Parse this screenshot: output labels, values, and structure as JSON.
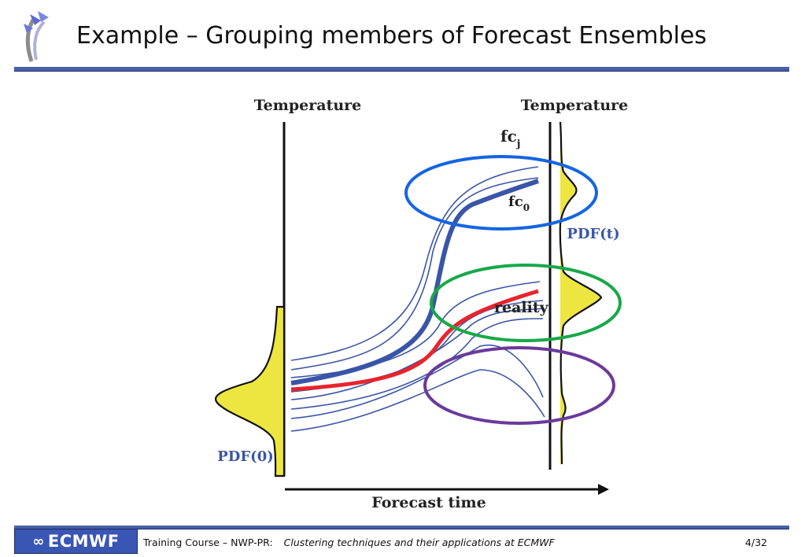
{
  "slide": {
    "title": "Example – Grouping members of Forecast Ensembles"
  },
  "diagram": {
    "left_axis_label": "Temperature",
    "right_axis_label": "Temperature",
    "x_axis_label": "Forecast time",
    "pdf_initial_label": "PDF(0)",
    "pdf_final_label": "PDF(t)",
    "member_label": "fc",
    "member_label_sub": "j",
    "control_label": "fc",
    "control_label_sub": "0",
    "reality_label": "reality",
    "colors": {
      "control": "#3a55a8",
      "members": "#3a55a8",
      "reality": "#e8242c",
      "pdf_fill": "#ede640",
      "cluster_top": "#1565e0",
      "cluster_middle": "#18a84a",
      "cluster_bottom": "#6a3a9a",
      "pdf_label": "#3a55a8"
    }
  },
  "footer": {
    "logo_text": "ECMWF",
    "course": "Training Course – NWP-PR:",
    "subtitle": "Clustering techniques and their applications at ECMWF",
    "page": "4/32"
  }
}
